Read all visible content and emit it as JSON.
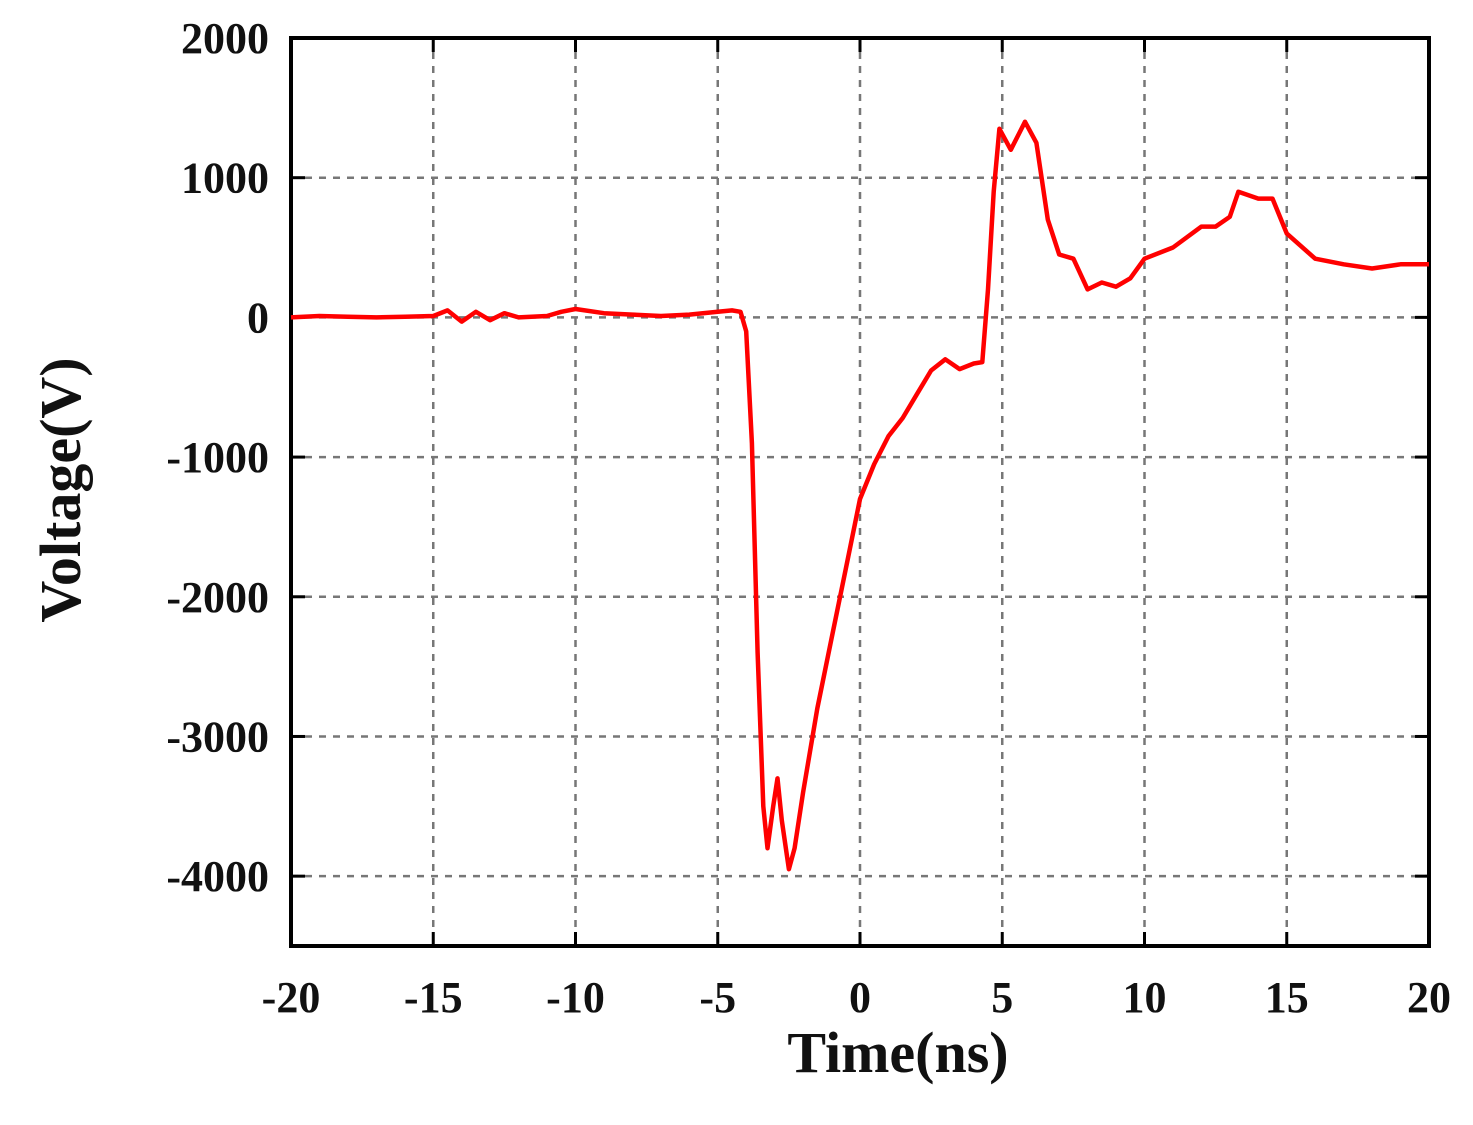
{
  "chart_data": {
    "type": "line",
    "xlabel": "Time(ns)",
    "ylabel": "Voltage(V)",
    "xlim": [
      -20,
      20
    ],
    "xticks": [
      -20,
      -15,
      -10,
      -5,
      0,
      5,
      10,
      15,
      20
    ],
    "ylim": [
      -4500,
      2000
    ],
    "yticks": [
      -4000,
      -3000,
      -2000,
      -1000,
      0,
      1000,
      2000
    ],
    "grid": true,
    "series": [
      {
        "color": "#ff0000",
        "x": [
          -20,
          -19,
          -18,
          -17,
          -16,
          -15,
          -14.5,
          -14,
          -13.5,
          -13,
          -12.5,
          -12,
          -11,
          -10.5,
          -10,
          -9,
          -8,
          -7,
          -6,
          -5,
          -4.5,
          -4.2,
          -4,
          -3.8,
          -3.6,
          -3.4,
          -3.25,
          -3.05,
          -2.9,
          -2.75,
          -2.5,
          -2.3,
          -2,
          -1.5,
          -1,
          -0.5,
          0,
          0.5,
          1,
          1.5,
          2,
          2.5,
          3,
          3.5,
          4,
          4.3,
          4.5,
          4.7,
          4.9,
          5.3,
          5.8,
          6.2,
          6.6,
          7,
          7.5,
          8,
          8.5,
          9,
          9.5,
          10,
          11,
          12,
          12.5,
          13,
          13.3,
          14,
          14.5,
          15,
          16,
          17,
          18,
          19,
          20
        ],
        "values": [
          0,
          10,
          5,
          0,
          5,
          10,
          50,
          -30,
          40,
          -20,
          30,
          0,
          10,
          40,
          60,
          30,
          20,
          10,
          20,
          40,
          50,
          40,
          -100,
          -900,
          -2400,
          -3500,
          -3800,
          -3500,
          -3300,
          -3600,
          -3950,
          -3800,
          -3400,
          -2800,
          -2300,
          -1800,
          -1300,
          -1050,
          -850,
          -720,
          -550,
          -380,
          -300,
          -370,
          -330,
          -320,
          200,
          900,
          1350,
          1200,
          1400,
          1250,
          700,
          450,
          420,
          200,
          250,
          220,
          280,
          420,
          500,
          650,
          650,
          720,
          900,
          850,
          850,
          600,
          420,
          380,
          350,
          380,
          380
        ]
      }
    ]
  }
}
